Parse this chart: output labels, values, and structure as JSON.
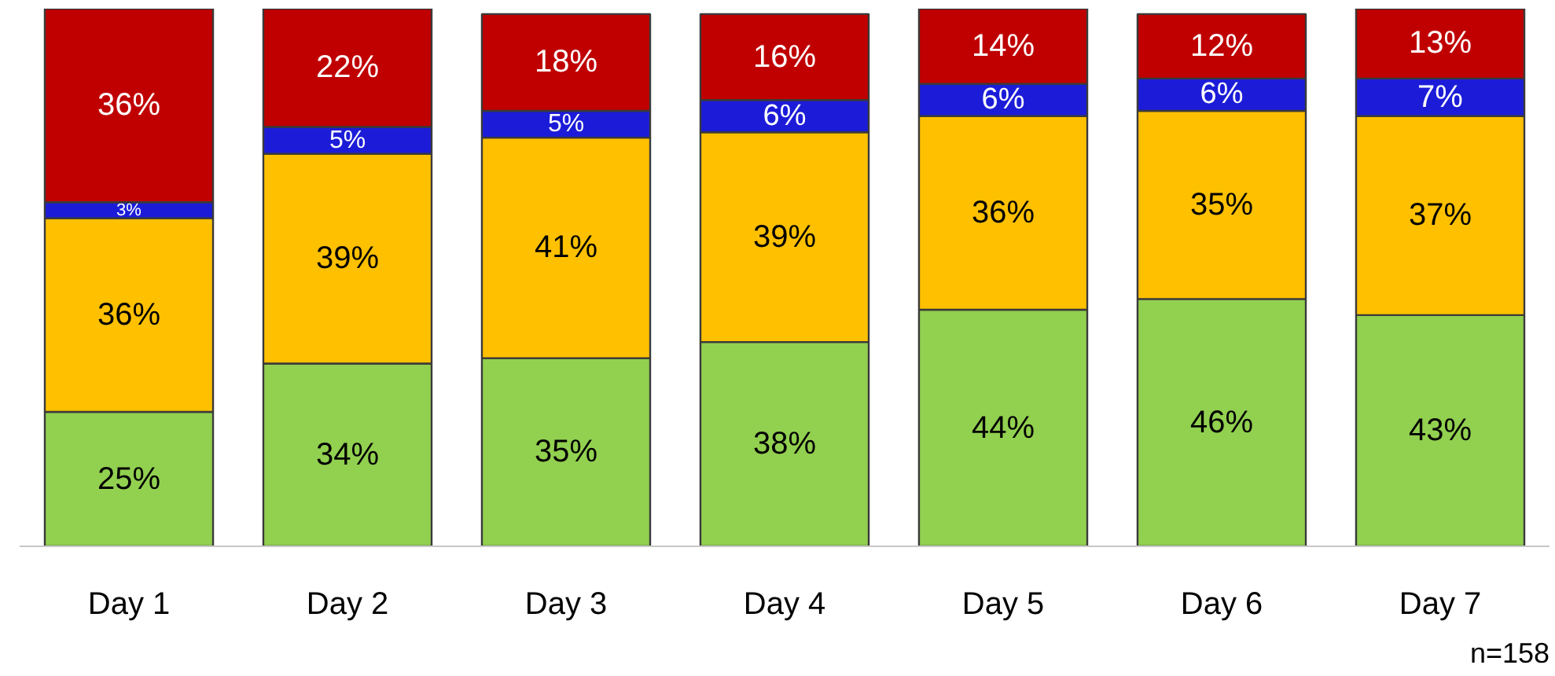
{
  "chart_data": {
    "type": "bar",
    "stacked": true,
    "grid": false,
    "categories": [
      "Day 1",
      "Day 2",
      "Day 3",
      "Day 4",
      "Day 5",
      "Day 6",
      "Day 7"
    ],
    "series": [
      {
        "color": "#92d050",
        "values": [
          25,
          34,
          35,
          38,
          44,
          46,
          43
        ],
        "value_labels": [
          "25%",
          "34%",
          "35%",
          "38%",
          "44%",
          "46%",
          "43%"
        ]
      },
      {
        "color": "#ffc000",
        "values": [
          36,
          39,
          41,
          39,
          36,
          35,
          37
        ],
        "value_labels": [
          "36%",
          "39%",
          "41%",
          "39%",
          "36%",
          "35%",
          "37%"
        ]
      },
      {
        "color": "#1c1cd8",
        "values": [
          3,
          5,
          5,
          6,
          6,
          6,
          7
        ],
        "value_labels": [
          "3%",
          "5%",
          "5%",
          "6%",
          "6%",
          "6%",
          "7%"
        ]
      },
      {
        "color": "#c00000",
        "values": [
          36,
          22,
          18,
          16,
          14,
          12,
          13
        ],
        "value_labels": [
          "36%",
          "22%",
          "18%",
          "16%",
          "14%",
          "12%",
          "13%"
        ]
      }
    ],
    "annotations": [
      "n=158"
    ]
  }
}
